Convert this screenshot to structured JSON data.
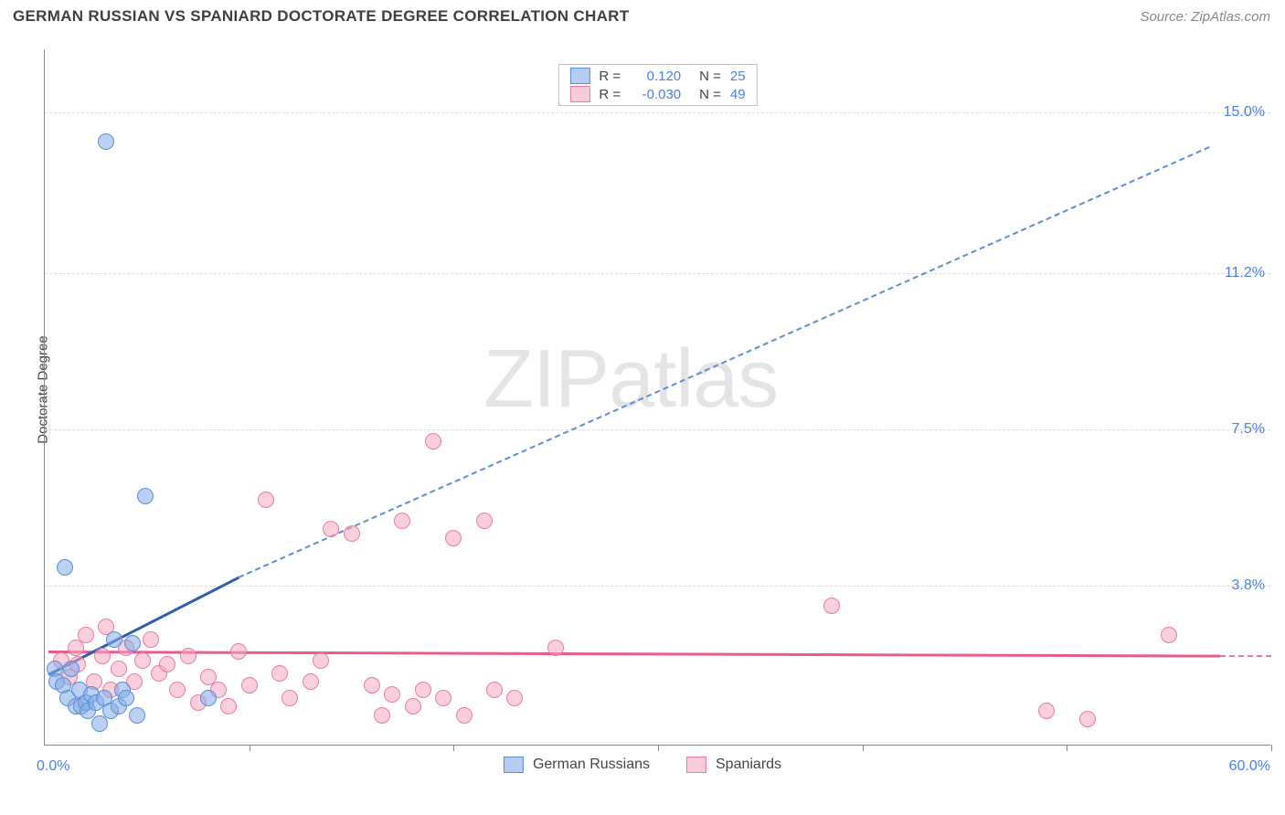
{
  "title": "GERMAN RUSSIAN VS SPANIARD DOCTORATE DEGREE CORRELATION CHART",
  "source": "Source: ZipAtlas.com",
  "y_axis_label": "Doctorate Degree",
  "watermark": "ZIPatlas",
  "chart": {
    "type": "scatter",
    "xlim": [
      0,
      60
    ],
    "ylim": [
      0,
      16.5
    ],
    "x_ticks": [
      0,
      10,
      20,
      30,
      40,
      50,
      60
    ],
    "y_ticks": [
      3.8,
      7.5,
      11.2,
      15.0
    ],
    "y_tick_labels": [
      "3.8%",
      "7.5%",
      "11.2%",
      "15.0%"
    ],
    "x_min_label": "0.0%",
    "x_max_label": "60.0%",
    "background_color": "#ffffff",
    "grid_color": "#dcdcdc",
    "axis_color": "#888888",
    "tick_label_color": "#4c7fe2",
    "point_radius": 9,
    "series": {
      "blue": {
        "label": "German Russians",
        "fill": "rgba(132,172,230,0.55)",
        "stroke": "#5a8dd8",
        "R": "0.120",
        "N": "25",
        "trend_solid": {
          "x1": 0.2,
          "y1": 1.7,
          "x2": 9.5,
          "y2": 4.0,
          "color": "#2e5db0",
          "width": 3
        },
        "trend_dash": {
          "x1": 9.5,
          "y1": 4.0,
          "x2": 57.0,
          "y2": 14.2,
          "color": "#5a8dd8",
          "width": 2
        },
        "points": [
          [
            0.5,
            1.8
          ],
          [
            0.6,
            1.5
          ],
          [
            0.9,
            1.4
          ],
          [
            1.1,
            1.1
          ],
          [
            1.3,
            1.8
          ],
          [
            1.5,
            0.9
          ],
          [
            1.7,
            1.3
          ],
          [
            1.8,
            0.9
          ],
          [
            2.0,
            1.0
          ],
          [
            2.1,
            0.8
          ],
          [
            2.3,
            1.2
          ],
          [
            2.5,
            1.0
          ],
          [
            2.7,
            0.5
          ],
          [
            2.9,
            1.1
          ],
          [
            3.2,
            0.8
          ],
          [
            3.4,
            2.5
          ],
          [
            3.6,
            0.9
          ],
          [
            3.8,
            1.3
          ],
          [
            4.0,
            1.1
          ],
          [
            4.3,
            2.4
          ],
          [
            4.5,
            0.7
          ],
          [
            4.9,
            5.9
          ],
          [
            3.0,
            14.3
          ],
          [
            1.0,
            4.2
          ],
          [
            8.0,
            1.1
          ]
        ]
      },
      "pink": {
        "label": "Spaniards",
        "fill": "rgba(244,168,192,0.55)",
        "stroke": "#e87ca3",
        "R": "-0.030",
        "N": "49",
        "trend_solid": {
          "x1": 0.2,
          "y1": 2.25,
          "x2": 57.5,
          "y2": 2.15,
          "color": "#e85a8f",
          "width": 3
        },
        "trend_dash": {
          "x1": 57.5,
          "y1": 2.15,
          "x2": 60.0,
          "y2": 2.15,
          "color": "#e87ca3",
          "width": 2
        },
        "points": [
          [
            0.8,
            2.0
          ],
          [
            1.2,
            1.6
          ],
          [
            1.6,
            1.9
          ],
          [
            2.0,
            2.6
          ],
          [
            2.4,
            1.5
          ],
          [
            2.8,
            2.1
          ],
          [
            3.2,
            1.3
          ],
          [
            3.6,
            1.8
          ],
          [
            4.0,
            2.3
          ],
          [
            4.4,
            1.5
          ],
          [
            4.8,
            2.0
          ],
          [
            5.2,
            2.5
          ],
          [
            5.6,
            1.7
          ],
          [
            6.0,
            1.9
          ],
          [
            6.5,
            1.3
          ],
          [
            7.0,
            2.1
          ],
          [
            7.5,
            1.0
          ],
          [
            8.0,
            1.6
          ],
          [
            8.5,
            1.3
          ],
          [
            9.0,
            0.9
          ],
          [
            9.5,
            2.2
          ],
          [
            10.0,
            1.4
          ],
          [
            10.8,
            5.8
          ],
          [
            11.5,
            1.7
          ],
          [
            12.0,
            1.1
          ],
          [
            13.0,
            1.5
          ],
          [
            14.0,
            5.1
          ],
          [
            15.0,
            5.0
          ],
          [
            16.0,
            1.4
          ],
          [
            16.5,
            0.7
          ],
          [
            17.0,
            1.2
          ],
          [
            17.5,
            5.3
          ],
          [
            18.0,
            0.9
          ],
          [
            18.5,
            1.3
          ],
          [
            19.0,
            7.2
          ],
          [
            19.5,
            1.1
          ],
          [
            20.0,
            4.9
          ],
          [
            20.5,
            0.7
          ],
          [
            21.5,
            5.3
          ],
          [
            22.0,
            1.3
          ],
          [
            23.0,
            1.1
          ],
          [
            25.0,
            2.3
          ],
          [
            38.5,
            3.3
          ],
          [
            49.0,
            0.8
          ],
          [
            51.0,
            0.6
          ],
          [
            55.0,
            2.6
          ],
          [
            1.5,
            2.3
          ],
          [
            3.0,
            2.8
          ],
          [
            13.5,
            2.0
          ]
        ]
      }
    }
  },
  "legend_bottom": [
    {
      "swatch": "blue",
      "label": "German Russians"
    },
    {
      "swatch": "pink",
      "label": "Spaniards"
    }
  ]
}
